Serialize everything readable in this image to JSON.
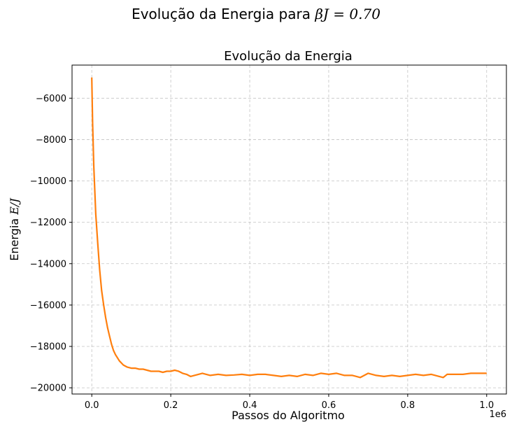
{
  "figure": {
    "suptitle_prefix": "Evolução da Energia para ",
    "suptitle_math": "βJ = 0.70"
  },
  "chart_data": {
    "type": "line",
    "title": "Evolução da Energia",
    "xlabel": "Passos do Algoritmo",
    "ylabel_prefix": "Energia ",
    "ylabel_math": "E/J",
    "x_offset_text": "1e6",
    "xlim": [
      -0.05,
      1.05
    ],
    "ylim": [
      -20300,
      -4400
    ],
    "xticks": [
      0.0,
      0.2,
      0.4,
      0.6,
      0.8,
      1.0
    ],
    "xtick_labels": [
      "0.0",
      "0.2",
      "0.4",
      "0.6",
      "0.8",
      "1.0"
    ],
    "yticks": [
      -20000,
      -18000,
      -16000,
      -14000,
      -12000,
      -10000,
      -8000,
      -6000
    ],
    "ytick_labels": [
      "−20000",
      "−18000",
      "−16000",
      "−14000",
      "−12000",
      "−10000",
      "−8000",
      "−6000"
    ],
    "grid": true,
    "series": [
      {
        "color": "#ff7f0e",
        "x": [
          0.0,
          0.002,
          0.005,
          0.01,
          0.015,
          0.02,
          0.025,
          0.03,
          0.035,
          0.04,
          0.045,
          0.05,
          0.055,
          0.06,
          0.07,
          0.08,
          0.09,
          0.1,
          0.11,
          0.12,
          0.13,
          0.14,
          0.15,
          0.16,
          0.17,
          0.18,
          0.19,
          0.2,
          0.21,
          0.22,
          0.23,
          0.24,
          0.25,
          0.26,
          0.27,
          0.28,
          0.29,
          0.3,
          0.32,
          0.34,
          0.36,
          0.38,
          0.4,
          0.42,
          0.44,
          0.46,
          0.48,
          0.5,
          0.52,
          0.54,
          0.56,
          0.58,
          0.6,
          0.62,
          0.64,
          0.66,
          0.68,
          0.7,
          0.72,
          0.74,
          0.76,
          0.78,
          0.8,
          0.82,
          0.84,
          0.86,
          0.88,
          0.89,
          0.9,
          0.92,
          0.94,
          0.96,
          0.98,
          1.0
        ],
        "y": [
          -5000,
          -7200,
          -9300,
          -11600,
          -13000,
          -14300,
          -15300,
          -16000,
          -16600,
          -17100,
          -17500,
          -17900,
          -18200,
          -18400,
          -18700,
          -18900,
          -19000,
          -19050,
          -19050,
          -19100,
          -19100,
          -19150,
          -19200,
          -19200,
          -19200,
          -19250,
          -19200,
          -19200,
          -19150,
          -19200,
          -19300,
          -19350,
          -19450,
          -19400,
          -19350,
          -19300,
          -19350,
          -19400,
          -19350,
          -19400,
          -19380,
          -19350,
          -19400,
          -19350,
          -19350,
          -19400,
          -19450,
          -19400,
          -19450,
          -19350,
          -19400,
          -19300,
          -19350,
          -19300,
          -19400,
          -19400,
          -19500,
          -19300,
          -19400,
          -19450,
          -19400,
          -19450,
          -19400,
          -19350,
          -19400,
          -19350,
          -19450,
          -19500,
          -19350,
          -19350,
          -19350,
          -19300,
          -19300,
          -19300
        ]
      }
    ]
  }
}
